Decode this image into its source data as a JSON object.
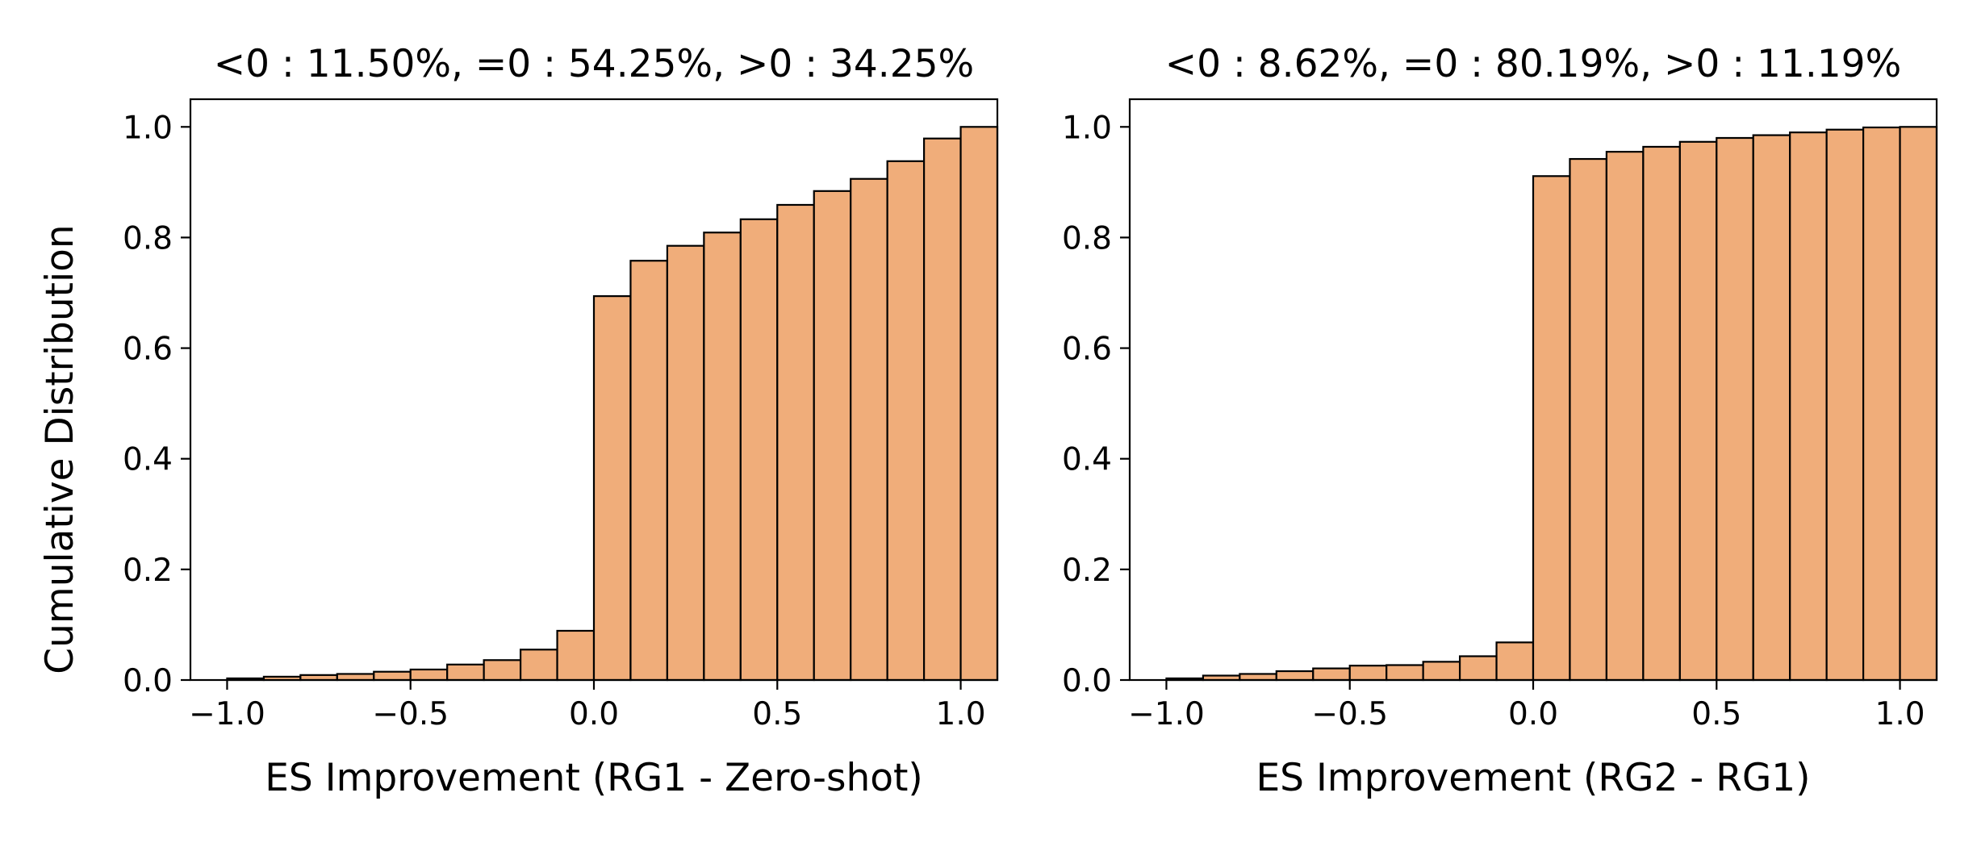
{
  "figure": {
    "ylabel": "Cumulative Distribution"
  },
  "chart_data": [
    {
      "type": "bar",
      "title": "<0 : 11.50%, =0 : 54.25%, >0 : 34.25%",
      "xlabel": "ES Improvement (RG1 - Zero-shot)",
      "ylabel": "Cumulative Distribution",
      "xlim": [
        -1.1,
        1.1
      ],
      "ylim": [
        0,
        1.05
      ],
      "xticks": [
        -1.0,
        -0.5,
        0.0,
        0.5,
        1.0
      ],
      "xtick_labels": [
        "−1.0",
        "−0.5",
        "0.0",
        "0.5",
        "1.0"
      ],
      "yticks": [
        0.0,
        0.2,
        0.4,
        0.6,
        0.8,
        1.0
      ],
      "ytick_labels": [
        "0.0",
        "0.2",
        "0.4",
        "0.6",
        "0.8",
        "1.0"
      ],
      "bin_edges": [
        -1.0,
        -0.9,
        -0.8,
        -0.7,
        -0.6,
        -0.5,
        -0.4,
        -0.3,
        -0.2,
        -0.1,
        0.0,
        0.1,
        0.2,
        0.3,
        0.4,
        0.5,
        0.6,
        0.7,
        0.8,
        0.9,
        1.0
      ],
      "values": [
        0.003,
        0.006,
        0.009,
        0.011,
        0.015,
        0.019,
        0.028,
        0.036,
        0.055,
        0.089,
        0.694,
        0.758,
        0.785,
        0.809,
        0.833,
        0.859,
        0.884,
        0.906,
        0.938,
        0.979,
        1.0
      ],
      "bar_color": "#f0ad7a",
      "edge_color": "#000000",
      "grid": false
    },
    {
      "type": "bar",
      "title": "<0 : 8.62%, =0 : 80.19%, >0 : 11.19%",
      "xlabel": "ES Improvement (RG2 - RG1)",
      "ylabel": "",
      "xlim": [
        -1.1,
        1.1
      ],
      "ylim": [
        0,
        1.05
      ],
      "xticks": [
        -1.0,
        -0.5,
        0.0,
        0.5,
        1.0
      ],
      "xtick_labels": [
        "−1.0",
        "−0.5",
        "0.0",
        "0.5",
        "1.0"
      ],
      "yticks": [
        0.0,
        0.2,
        0.4,
        0.6,
        0.8,
        1.0
      ],
      "ytick_labels": [
        "0.0",
        "0.2",
        "0.4",
        "0.6",
        "0.8",
        "1.0"
      ],
      "bin_edges": [
        -1.0,
        -0.9,
        -0.8,
        -0.7,
        -0.6,
        -0.5,
        -0.4,
        -0.3,
        -0.2,
        -0.1,
        0.0,
        0.1,
        0.2,
        0.3,
        0.4,
        0.5,
        0.6,
        0.7,
        0.8,
        0.9,
        1.0
      ],
      "values": [
        0.003,
        0.008,
        0.011,
        0.016,
        0.021,
        0.026,
        0.027,
        0.033,
        0.043,
        0.068,
        0.911,
        0.942,
        0.955,
        0.964,
        0.973,
        0.98,
        0.985,
        0.99,
        0.995,
        0.999,
        1.0
      ],
      "bar_color": "#f0ad7a",
      "edge_color": "#000000",
      "grid": false
    }
  ]
}
